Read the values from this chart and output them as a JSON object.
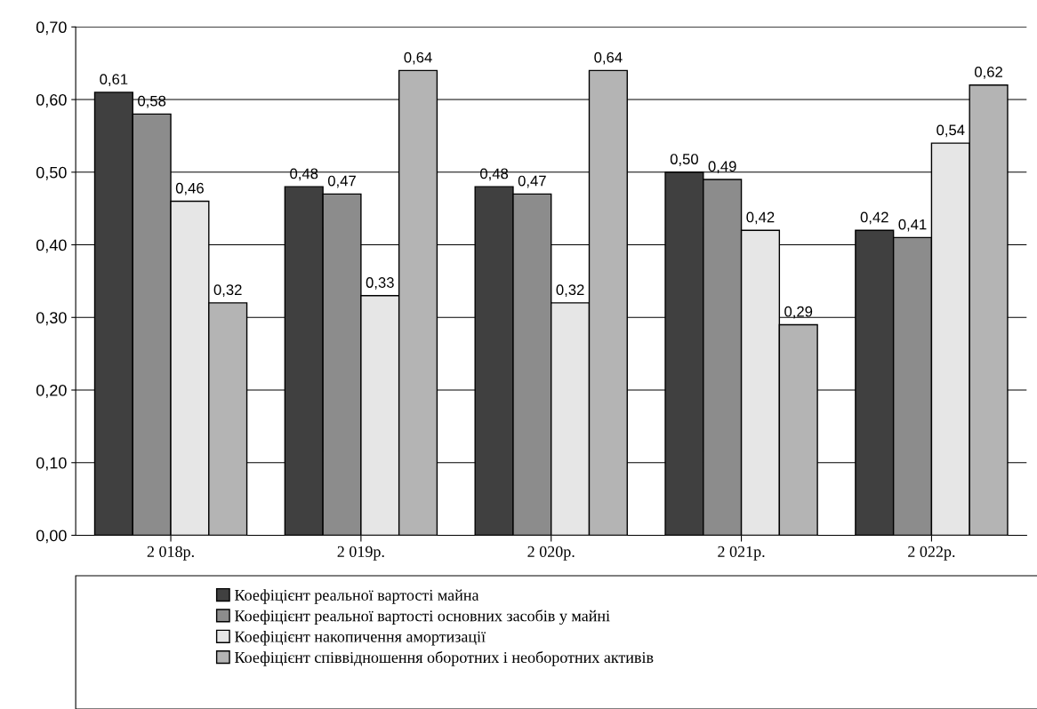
{
  "chart_data": {
    "type": "bar",
    "categories": [
      "2 018р.",
      "2 019р.",
      "2 020р.",
      "2 021р.",
      "2 022р."
    ],
    "series": [
      {
        "name": "Коефіцієнт реальної вартості майна",
        "color": "#404040",
        "values": [
          0.61,
          0.48,
          0.48,
          0.5,
          0.42
        ],
        "value_labels": [
          "0,61",
          "0,48",
          "0,48",
          "0,50",
          "0,42"
        ]
      },
      {
        "name": "Коефіцієнт реальної вартості основних засобів у майні",
        "color": "#8c8c8c",
        "values": [
          0.58,
          0.47,
          0.47,
          0.49,
          0.41
        ],
        "value_labels": [
          "0,58",
          "0,47",
          "0,47",
          "0,49",
          "0,41"
        ]
      },
      {
        "name": "Коефіцієнт накопичення амортизації",
        "color": "#e6e6e6",
        "values": [
          0.46,
          0.33,
          0.32,
          0.42,
          0.54
        ],
        "value_labels": [
          "0,46",
          "0,33",
          "0,32",
          "0,42",
          "0,54"
        ]
      },
      {
        "name": "Коефіцієнт співвідношення оборотних і необоротних активів",
        "color": "#b4b4b4",
        "values": [
          0.32,
          0.64,
          0.64,
          0.29,
          0.62
        ],
        "value_labels": [
          "0,32",
          "0,64",
          "0,64",
          "0,29",
          "0,62"
        ]
      }
    ],
    "ylim": [
      0,
      0.7
    ],
    "yticks": [
      {
        "value": 0,
        "label": "0,00"
      },
      {
        "value": 0.1,
        "label": "0,10"
      },
      {
        "value": 0.2,
        "label": "0,20"
      },
      {
        "value": 0.3,
        "label": "0,30"
      },
      {
        "value": 0.4,
        "label": "0,40"
      },
      {
        "value": 0.5,
        "label": "0,50"
      },
      {
        "value": 0.6,
        "label": "0,60"
      },
      {
        "value": 0.7,
        "label": "0,70"
      }
    ],
    "grid": "y",
    "legend": "bottom"
  }
}
